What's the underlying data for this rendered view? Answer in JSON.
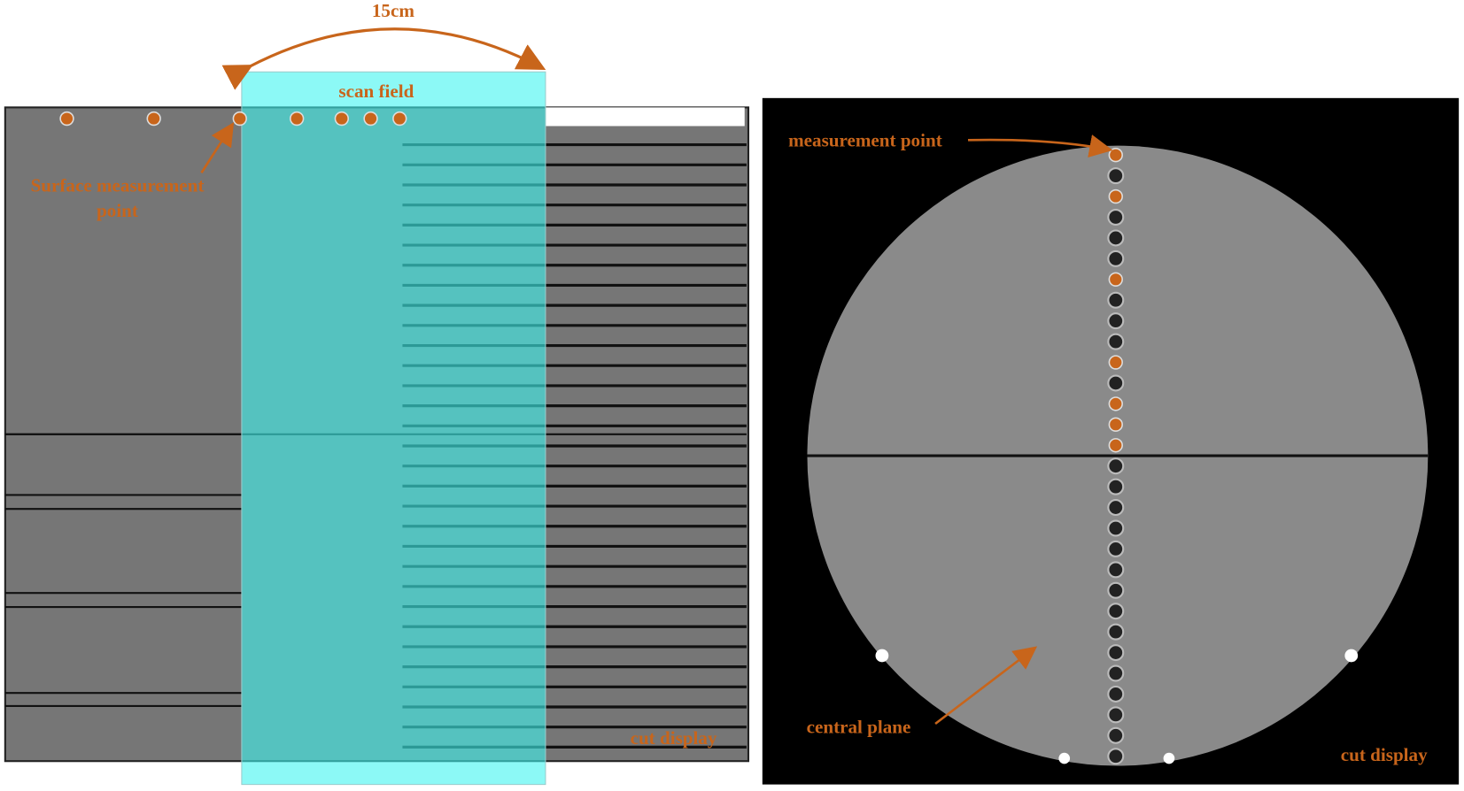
{
  "left_panel": {
    "dimension_label": "15cm",
    "scan_field_label": "scan field",
    "surface_point_label": [
      "Surface measurement",
      "point"
    ],
    "cut_display_label": "cut display"
  },
  "right_panel": {
    "measurement_point_label": "measurement point",
    "central_plane_label": "central plane",
    "cut_display_label": "cut display"
  }
}
